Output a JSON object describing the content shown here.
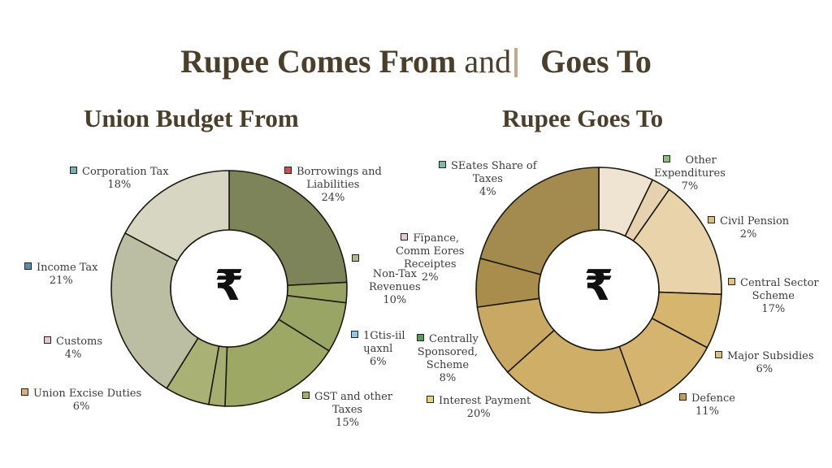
{
  "header": {
    "title_part1": "Rupee Comes From",
    "title_part2": "and",
    "title_part3": "Goes To"
  },
  "center_symbol": "₹",
  "chart_data": [
    {
      "type": "pie",
      "variant": "donut",
      "title": "Union Budget From",
      "categories": [
        "Borrowings and Liabilities",
        "Finance, Commission Receipts",
        "Non-Tax Revenues",
        "GST and other Taxes",
        "Customs (segment)",
        "Union Excise Duties",
        "Income Tax",
        "Corporation Tax"
      ],
      "labels": [
        {
          "name": "Corporation Tax",
          "value": "18%",
          "swatch": "#7ab0b8"
        },
        {
          "name": "Borrowings and Liabilities",
          "value": "24%",
          "swatch": "#c0574a"
        },
        {
          "name": "Income Tax",
          "value": "21%",
          "swatch": "#5a8fa8"
        },
        {
          "name": "Non-Tax Revenues",
          "value": "10%",
          "swatch": "#b5b78a"
        },
        {
          "name": "Customs",
          "value": "4%",
          "swatch": "#e8c8d0"
        },
        {
          "name": "1Gtis-iil ɥaxnl",
          "value": "6%",
          "swatch": "#8ec8e0"
        },
        {
          "name": "Union Excise Duties",
          "value": "6%",
          "swatch": "#d8b27a"
        },
        {
          "name": "GST and other Taxes",
          "value": "15%",
          "swatch": "#a8ad6a"
        }
      ],
      "slices": [
        {
          "start": 0,
          "end": 87,
          "color": "#7d8459"
        },
        {
          "start": 87,
          "end": 97,
          "color": "#98a363"
        },
        {
          "start": 97,
          "end": 122,
          "color": "#99a564"
        },
        {
          "start": 122,
          "end": 182,
          "color": "#9da865"
        },
        {
          "start": 182,
          "end": 190,
          "color": "#a5ad70"
        },
        {
          "start": 190,
          "end": 212,
          "color": "#a9b274"
        },
        {
          "start": 212,
          "end": 298,
          "color": "#bcbea3"
        },
        {
          "start": 298,
          "end": 360,
          "color": "#d6d6c3"
        }
      ]
    },
    {
      "type": "pie",
      "variant": "donut",
      "title": "Rupee Goes To",
      "labels": [
        {
          "name": "SEates Share of Taxes",
          "value": "4%",
          "swatch": "#7fb8a8"
        },
        {
          "name": "Other Expenditures",
          "value": "7%",
          "swatch": "#8fbf7a"
        },
        {
          "name": "Civil Pension",
          "value": "2%",
          "swatch": "#d9c27a"
        },
        {
          "name": "Fïpance, Comm Eores Receiptes",
          "value": "2%",
          "swatch": "#e6c8d6"
        },
        {
          "name": "Central Sector Scheme",
          "value": "17%",
          "swatch": "#d9c27a"
        },
        {
          "name": "Centrally Sponsored, Scheme",
          "value": "8%",
          "swatch": "#5a9a5a"
        },
        {
          "name": "Major Subsidies",
          "value": "6%",
          "swatch": "#d9c27a"
        },
        {
          "name": "Interest Payment",
          "value": "20%",
          "swatch": "#e6d47a"
        },
        {
          "name": "Defence",
          "value": "11%",
          "swatch": "#c89a5a"
        }
      ],
      "slices": [
        {
          "start": 0,
          "end": 26,
          "color": "#efe3d2"
        },
        {
          "start": 26,
          "end": 35,
          "color": "#e6d2b0"
        },
        {
          "start": 35,
          "end": 92,
          "color": "#e8d3ab"
        },
        {
          "start": 92,
          "end": 118,
          "color": "#d6b56f"
        },
        {
          "start": 118,
          "end": 160,
          "color": "#d5b470"
        },
        {
          "start": 160,
          "end": 228,
          "color": "#cfae68"
        },
        {
          "start": 228,
          "end": 262,
          "color": "#c9a864"
        },
        {
          "start": 262,
          "end": 285,
          "color": "#a88d4c"
        },
        {
          "start": 285,
          "end": 360,
          "color": "#a38a4e"
        }
      ]
    }
  ]
}
